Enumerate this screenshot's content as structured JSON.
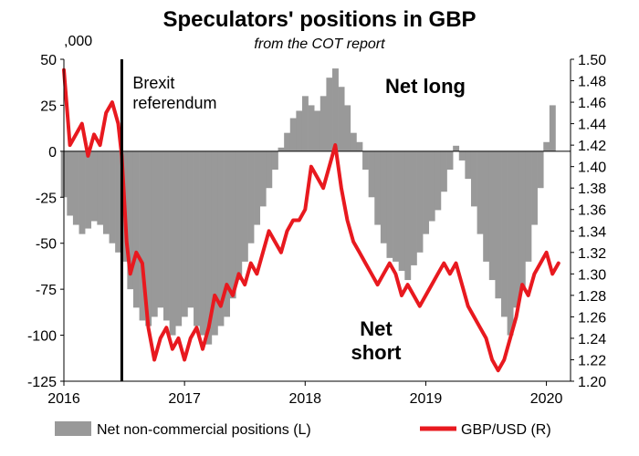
{
  "chart_data": {
    "type": "bar+line",
    "title": "Speculators' positions in GBP",
    "subtitle": "from the COT report",
    "left_axis_unit": ",000",
    "left_axis": {
      "ylim": [
        -125,
        50
      ],
      "ticks": [
        "50",
        "25",
        "0",
        "-25",
        "-50",
        "-75",
        "-100",
        "-125"
      ]
    },
    "right_axis": {
      "ylim": [
        1.2,
        1.5
      ],
      "ticks": [
        "1.50",
        "1.48",
        "1.46",
        "1.44",
        "1.42",
        "1.40",
        "1.38",
        "1.36",
        "1.34",
        "1.32",
        "1.30",
        "1.28",
        "1.26",
        "1.24",
        "1.22",
        "1.20"
      ]
    },
    "x_axis": {
      "range": [
        2016.0,
        2020.2
      ],
      "ticks": [
        "2016",
        "2017",
        "2018",
        "2019",
        "2020"
      ]
    },
    "annotations": {
      "event_label": "Brexit\nreferendum",
      "event_x": 2016.48,
      "net_long": "Net long",
      "net_short": "Net\nshort"
    },
    "legend": [
      {
        "label": "Net non-commercial positions (L)",
        "color": "#999999",
        "kind": "bar"
      },
      {
        "label": "GBP/USD (R)",
        "color": "#e8191f",
        "kind": "line"
      }
    ],
    "colors": {
      "bars": "#999999",
      "line": "#e8191f",
      "event_line": "#000000"
    },
    "series": [
      {
        "name": "Net non-commercial positions (L)",
        "kind": "bar",
        "x": [
          2016.0,
          2016.05,
          2016.1,
          2016.15,
          2016.2,
          2016.25,
          2016.3,
          2016.35,
          2016.4,
          2016.45,
          2016.5,
          2016.55,
          2016.6,
          2016.65,
          2016.7,
          2016.75,
          2016.8,
          2016.85,
          2016.9,
          2016.95,
          2017.0,
          2017.05,
          2017.1,
          2017.15,
          2017.2,
          2017.25,
          2017.3,
          2017.35,
          2017.4,
          2017.45,
          2017.5,
          2017.55,
          2017.6,
          2017.65,
          2017.7,
          2017.75,
          2017.8,
          2017.85,
          2017.9,
          2017.95,
          2018.0,
          2018.05,
          2018.1,
          2018.15,
          2018.2,
          2018.25,
          2018.3,
          2018.35,
          2018.4,
          2018.45,
          2018.5,
          2018.55,
          2018.6,
          2018.65,
          2018.7,
          2018.75,
          2018.8,
          2018.85,
          2018.9,
          2018.95,
          2019.0,
          2019.05,
          2019.1,
          2019.15,
          2019.2,
          2019.25,
          2019.3,
          2019.35,
          2019.4,
          2019.45,
          2019.5,
          2019.55,
          2019.6,
          2019.65,
          2019.7,
          2019.75,
          2019.8,
          2019.85,
          2019.9,
          2019.95,
          2020.0,
          2020.05
        ],
        "values": [
          -25,
          -35,
          -40,
          -45,
          -42,
          -38,
          -40,
          -45,
          -50,
          -55,
          -60,
          -75,
          -85,
          -92,
          -95,
          -90,
          -85,
          -92,
          -100,
          -95,
          -90,
          -85,
          -95,
          -100,
          -105,
          -100,
          -95,
          -90,
          -80,
          -70,
          -60,
          -50,
          -40,
          -30,
          -20,
          -10,
          2,
          10,
          18,
          22,
          30,
          25,
          22,
          30,
          40,
          45,
          35,
          25,
          10,
          5,
          -10,
          -25,
          -40,
          -50,
          -58,
          -60,
          -65,
          -70,
          -62,
          -55,
          -45,
          -38,
          -32,
          -22,
          -10,
          3,
          -5,
          -15,
          -30,
          -45,
          -60,
          -70,
          -80,
          -90,
          -100,
          -85,
          -75,
          -60,
          -40,
          -20,
          5,
          25
        ]
      },
      {
        "name": "GBP/USD (R)",
        "kind": "line",
        "x": [
          2016.0,
          2016.05,
          2016.1,
          2016.15,
          2016.2,
          2016.25,
          2016.3,
          2016.35,
          2016.4,
          2016.45,
          2016.48,
          2016.52,
          2016.55,
          2016.6,
          2016.65,
          2016.7,
          2016.75,
          2016.8,
          2016.85,
          2016.9,
          2016.95,
          2017.0,
          2017.05,
          2017.1,
          2017.15,
          2017.2,
          2017.25,
          2017.3,
          2017.35,
          2017.4,
          2017.45,
          2017.5,
          2017.55,
          2017.6,
          2017.65,
          2017.7,
          2017.75,
          2017.8,
          2017.85,
          2017.9,
          2017.95,
          2018.0,
          2018.05,
          2018.1,
          2018.15,
          2018.2,
          2018.25,
          2018.3,
          2018.35,
          2018.4,
          2018.45,
          2018.5,
          2018.55,
          2018.6,
          2018.65,
          2018.7,
          2018.75,
          2018.8,
          2018.85,
          2018.9,
          2018.95,
          2019.0,
          2019.05,
          2019.1,
          2019.15,
          2019.2,
          2019.25,
          2019.3,
          2019.35,
          2019.4,
          2019.45,
          2019.5,
          2019.55,
          2019.6,
          2019.65,
          2019.7,
          2019.75,
          2019.8,
          2019.85,
          2019.9,
          2019.95,
          2020.0,
          2020.05,
          2020.1
        ],
        "values": [
          1.49,
          1.42,
          1.43,
          1.44,
          1.41,
          1.43,
          1.42,
          1.45,
          1.46,
          1.44,
          1.41,
          1.33,
          1.3,
          1.32,
          1.31,
          1.25,
          1.22,
          1.24,
          1.25,
          1.23,
          1.24,
          1.22,
          1.24,
          1.25,
          1.23,
          1.25,
          1.28,
          1.27,
          1.29,
          1.28,
          1.3,
          1.29,
          1.31,
          1.3,
          1.32,
          1.34,
          1.33,
          1.32,
          1.34,
          1.35,
          1.35,
          1.36,
          1.4,
          1.39,
          1.38,
          1.4,
          1.42,
          1.38,
          1.35,
          1.33,
          1.32,
          1.31,
          1.3,
          1.29,
          1.3,
          1.31,
          1.3,
          1.28,
          1.29,
          1.28,
          1.27,
          1.28,
          1.29,
          1.3,
          1.31,
          1.3,
          1.31,
          1.29,
          1.27,
          1.26,
          1.25,
          1.24,
          1.22,
          1.21,
          1.22,
          1.24,
          1.26,
          1.29,
          1.28,
          1.3,
          1.31,
          1.32,
          1.3,
          1.31
        ]
      }
    ]
  }
}
